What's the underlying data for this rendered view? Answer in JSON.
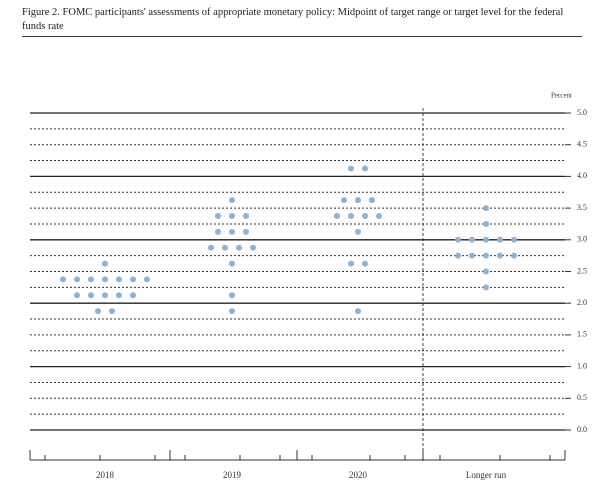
{
  "chart_data": {
    "type": "dot",
    "title": "Figure 2. FOMC participants' assessments of appropriate monetary policy: Midpoint of target range or target level for the federal funds rate",
    "y_unit": "Percent",
    "categories": [
      "2018",
      "2019",
      "2020",
      "Longer run"
    ],
    "values": [
      [
        2.625,
        2.375,
        2.375,
        2.375,
        2.375,
        2.375,
        2.375,
        2.375,
        2.125,
        2.125,
        2.125,
        2.125,
        2.125,
        1.875,
        1.875
      ],
      [
        3.625,
        3.375,
        3.375,
        3.375,
        3.125,
        3.125,
        3.125,
        2.875,
        2.875,
        2.875,
        2.875,
        2.625,
        2.125,
        1.875
      ],
      [
        4.125,
        4.125,
        3.625,
        3.625,
        3.625,
        3.375,
        3.375,
        3.375,
        3.375,
        3.125,
        2.625,
        2.625,
        1.875
      ],
      [
        3.5,
        3.25,
        3.0,
        3.0,
        3.0,
        3.0,
        3.0,
        2.75,
        2.75,
        2.75,
        2.75,
        2.75,
        2.5,
        2.25
      ]
    ],
    "color": "#8fb1d3",
    "ylim": [
      0,
      5
    ],
    "yticks": [
      {
        "value": 0,
        "label": "0.0"
      },
      {
        "value": 0.5,
        "label": "0.5"
      },
      {
        "value": 1,
        "label": "1.0"
      },
      {
        "value": 1.5,
        "label": "1.5"
      },
      {
        "value": 2,
        "label": "2.0"
      },
      {
        "value": 2.5,
        "label": "2.5"
      },
      {
        "value": 3,
        "label": "3.0"
      },
      {
        "value": 3.5,
        "label": "3.5"
      },
      {
        "value": 4,
        "label": "4.0"
      },
      {
        "value": 4.5,
        "label": "4.5"
      },
      {
        "value": 5,
        "label": "5.0"
      }
    ],
    "grid": true
  }
}
